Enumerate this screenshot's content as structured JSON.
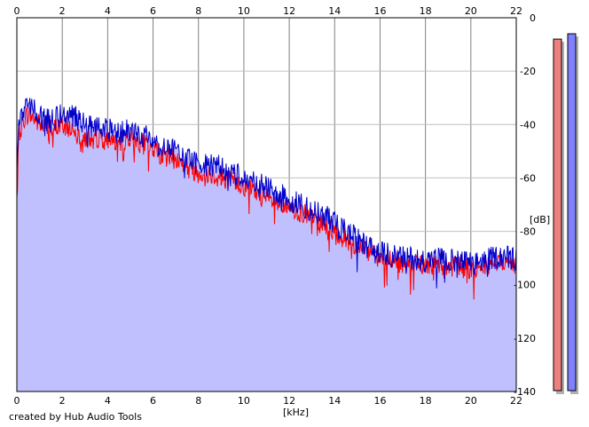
{
  "credit": "created by Hub Audio Tools",
  "chart_data": {
    "type": "area",
    "xlabel": "[kHz]",
    "ylabel": "[dB]",
    "xlim": [
      0,
      22
    ],
    "ylim": [
      -140,
      0
    ],
    "x_ticks": [
      0,
      2,
      4,
      6,
      8,
      10,
      12,
      14,
      16,
      18,
      20,
      22
    ],
    "y_ticks": [
      0,
      -20,
      -40,
      -60,
      -80,
      -100,
      -120,
      -140
    ],
    "grid": true,
    "x_axis_position": "top and bottom",
    "y_axis_position": "right",
    "fill_color": "#c0c0ff",
    "series": [
      {
        "color": "#ff0000",
        "points": [
          [
            0,
            -68
          ],
          [
            0.05,
            -52
          ],
          [
            0.1,
            -44
          ],
          [
            0.3,
            -38
          ],
          [
            0.5,
            -36
          ],
          [
            0.8,
            -38
          ],
          [
            1.0,
            -40
          ],
          [
            1.5,
            -42
          ],
          [
            2.0,
            -40
          ],
          [
            2.5,
            -42
          ],
          [
            3.0,
            -45
          ],
          [
            3.5,
            -45
          ],
          [
            4.0,
            -45
          ],
          [
            4.5,
            -47
          ],
          [
            5.0,
            -45
          ],
          [
            5.5,
            -47
          ],
          [
            6.0,
            -49
          ],
          [
            6.5,
            -52
          ],
          [
            7.0,
            -53
          ],
          [
            7.5,
            -56
          ],
          [
            8.0,
            -58
          ],
          [
            8.5,
            -58
          ],
          [
            9.0,
            -60
          ],
          [
            9.5,
            -61
          ],
          [
            10.0,
            -63
          ],
          [
            10.5,
            -65
          ],
          [
            11.0,
            -68
          ],
          [
            11.5,
            -70
          ],
          [
            12.0,
            -72
          ],
          [
            12.5,
            -73
          ],
          [
            13.0,
            -75
          ],
          [
            13.5,
            -77
          ],
          [
            14.0,
            -80
          ],
          [
            14.5,
            -83
          ],
          [
            15.0,
            -86
          ],
          [
            15.5,
            -88
          ],
          [
            16.0,
            -90
          ],
          [
            16.5,
            -91
          ],
          [
            17.0,
            -92
          ],
          [
            17.5,
            -92
          ],
          [
            18.0,
            -93
          ],
          [
            18.5,
            -92
          ],
          [
            19.0,
            -93
          ],
          [
            19.5,
            -93
          ],
          [
            20.0,
            -94
          ],
          [
            20.5,
            -93
          ],
          [
            21.0,
            -92
          ],
          [
            21.5,
            -91
          ],
          [
            22.0,
            -93
          ]
        ]
      },
      {
        "color": "#0000cc",
        "points": [
          [
            0,
            -60
          ],
          [
            0.05,
            -50
          ],
          [
            0.1,
            -38
          ],
          [
            0.3,
            -34
          ],
          [
            0.5,
            -33
          ],
          [
            0.8,
            -35
          ],
          [
            1.0,
            -37
          ],
          [
            1.5,
            -39
          ],
          [
            2.0,
            -36
          ],
          [
            2.5,
            -37
          ],
          [
            3.0,
            -40
          ],
          [
            3.5,
            -41
          ],
          [
            4.0,
            -42
          ],
          [
            4.5,
            -43
          ],
          [
            5.0,
            -42
          ],
          [
            5.5,
            -44
          ],
          [
            6.0,
            -46
          ],
          [
            6.5,
            -49
          ],
          [
            7.0,
            -50
          ],
          [
            7.5,
            -53
          ],
          [
            8.0,
            -54
          ],
          [
            8.5,
            -55
          ],
          [
            9.0,
            -56
          ],
          [
            9.5,
            -58
          ],
          [
            10.0,
            -59
          ],
          [
            10.5,
            -61
          ],
          [
            11.0,
            -64
          ],
          [
            11.5,
            -66
          ],
          [
            12.0,
            -68
          ],
          [
            12.5,
            -70
          ],
          [
            13.0,
            -72
          ],
          [
            13.5,
            -74
          ],
          [
            14.0,
            -77
          ],
          [
            14.5,
            -80
          ],
          [
            15.0,
            -83
          ],
          [
            15.5,
            -86
          ],
          [
            16.0,
            -88
          ],
          [
            16.5,
            -89
          ],
          [
            17.0,
            -90
          ],
          [
            17.5,
            -90
          ],
          [
            18.0,
            -91
          ],
          [
            18.5,
            -90
          ],
          [
            19.0,
            -91
          ],
          [
            19.5,
            -91
          ],
          [
            20.0,
            -92
          ],
          [
            20.5,
            -91
          ],
          [
            21.0,
            -90
          ],
          [
            21.5,
            -89
          ],
          [
            22.0,
            -91
          ]
        ]
      }
    ],
    "level_meters": [
      {
        "color": "#f08080",
        "peak_db": -8
      },
      {
        "color": "#8080ff",
        "peak_db": -6
      }
    ]
  }
}
